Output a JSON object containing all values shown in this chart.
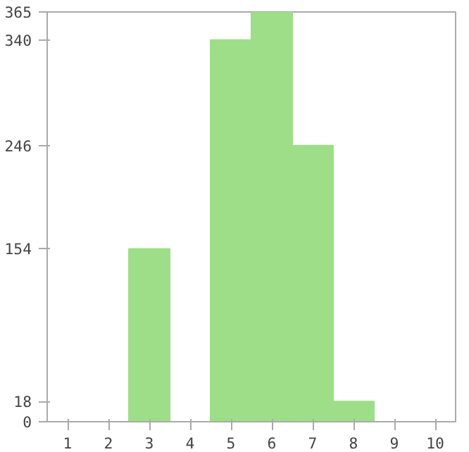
{
  "chart_data": {
    "type": "bar",
    "categories": [
      "1",
      "2",
      "3",
      "4",
      "5",
      "6",
      "7",
      "8",
      "9",
      "10"
    ],
    "values": [
      0,
      0,
      154,
      0,
      340,
      365,
      246,
      18,
      0,
      0
    ],
    "color": "#9ede88",
    "ylim": [
      0,
      365
    ],
    "yticks": [
      0,
      18,
      154,
      246,
      340,
      365
    ],
    "grid": false
  }
}
